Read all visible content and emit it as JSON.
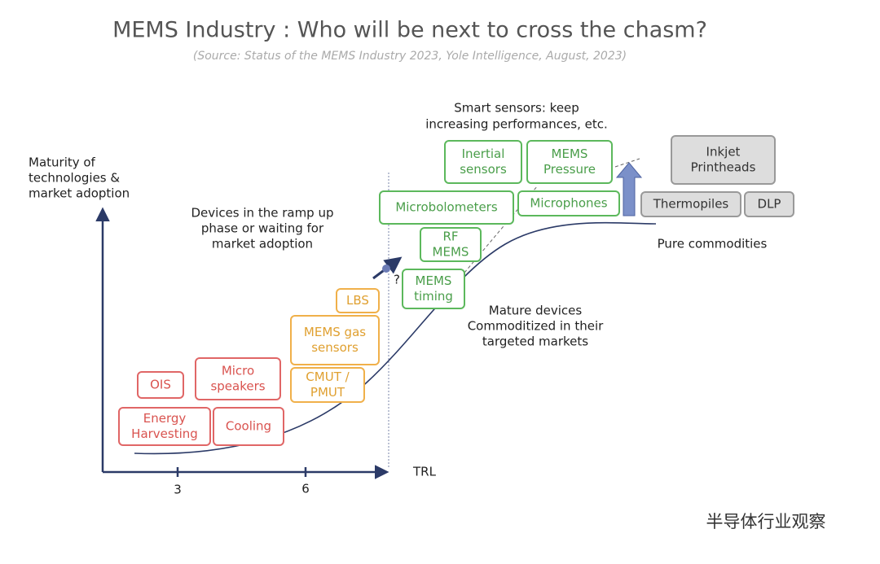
{
  "header": {
    "title": "MEMS Industry : Who will be next to cross the chasm?",
    "subtitle": "(Source: Status of the MEMS Industry 2023, Yole Intelligence, August, 2023)"
  },
  "axes": {
    "y_label": [
      "Maturity of",
      "technologies &",
      "market adoption"
    ],
    "x_label": "TRL",
    "x_ticks": [
      "3",
      "6"
    ]
  },
  "annotations": {
    "ramp_up": [
      "Devices in the ramp up",
      "phase or waiting for",
      "market adoption"
    ],
    "smart_sensors": [
      "Smart sensors: keep",
      "increasing performances, etc."
    ],
    "mature": [
      "Mature devices",
      "Commoditized in their",
      "targeted markets"
    ],
    "commodities": "Pure commodities",
    "question": "?"
  },
  "boxes": [
    {
      "lines": [
        "OIS"
      ]
    },
    {
      "lines": [
        "Micro",
        "speakers"
      ]
    },
    {
      "lines": [
        "Energy",
        "Harvesting"
      ]
    },
    {
      "lines": [
        "Cooling"
      ]
    },
    {
      "lines": [
        "LBS"
      ]
    },
    {
      "lines": [
        "MEMS gas",
        "sensors"
      ]
    },
    {
      "lines": [
        "CMUT /",
        "PMUT"
      ]
    },
    {
      "lines": [
        "Inertial",
        "sensors"
      ]
    },
    {
      "lines": [
        "MEMS",
        "Pressure"
      ]
    },
    {
      "lines": [
        "Microbolometers"
      ]
    },
    {
      "lines": [
        "Microphones"
      ]
    },
    {
      "lines": [
        "RF",
        "MEMS"
      ]
    },
    {
      "lines": [
        "MEMS",
        "timing"
      ]
    },
    {
      "lines": [
        "Inkjet",
        "Printheads"
      ]
    },
    {
      "lines": [
        "Thermopiles"
      ]
    },
    {
      "lines": [
        "DLP"
      ]
    }
  ],
  "watermark": "半导体行业观察"
}
